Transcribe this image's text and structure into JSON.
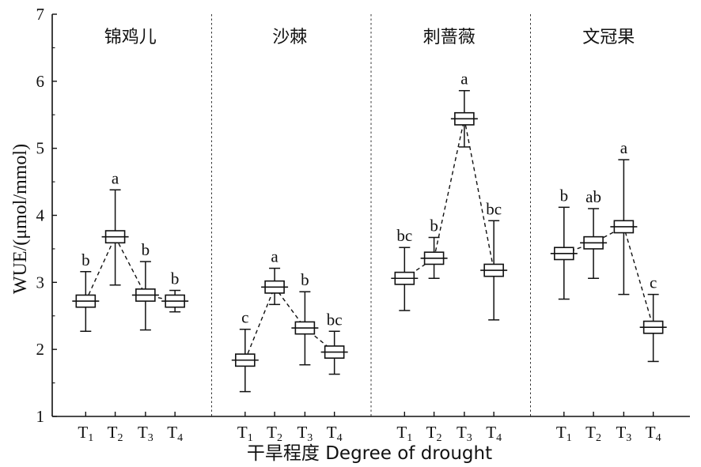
{
  "chart_data": {
    "type": "box",
    "ylabel": "WUE/(μmol/mmol)",
    "xlabel": "干旱程度 Degree of drought",
    "ylim": [
      1,
      7
    ],
    "yticks": [
      1,
      2,
      3,
      4,
      5,
      6,
      7
    ],
    "categories": [
      {
        "base": "T",
        "sub": "1"
      },
      {
        "base": "T",
        "sub": "2"
      },
      {
        "base": "T",
        "sub": "3"
      },
      {
        "base": "T",
        "sub": "4"
      }
    ],
    "panels": [
      {
        "title": "锦鸡儿",
        "boxes": [
          {
            "mean": 2.72,
            "q1": 2.63,
            "q3": 2.81,
            "min": 2.27,
            "max": 3.16,
            "sig": "b"
          },
          {
            "mean": 3.68,
            "q1": 3.59,
            "q3": 3.77,
            "min": 2.96,
            "max": 4.38,
            "sig": "a"
          },
          {
            "mean": 2.81,
            "q1": 2.72,
            "q3": 2.9,
            "min": 2.29,
            "max": 3.31,
            "sig": "b"
          },
          {
            "mean": 2.72,
            "q1": 2.63,
            "q3": 2.81,
            "min": 2.56,
            "max": 2.88,
            "sig": "b"
          }
        ]
      },
      {
        "title": "沙棘",
        "boxes": [
          {
            "mean": 1.84,
            "q1": 1.75,
            "q3": 1.93,
            "min": 1.37,
            "max": 2.3,
            "sig": "c"
          },
          {
            "mean": 2.93,
            "q1": 2.84,
            "q3": 3.02,
            "min": 2.67,
            "max": 3.21,
            "sig": "a"
          },
          {
            "mean": 2.32,
            "q1": 2.23,
            "q3": 2.41,
            "min": 1.77,
            "max": 2.86,
            "sig": "b"
          },
          {
            "mean": 1.96,
            "q1": 1.87,
            "q3": 2.05,
            "min": 1.63,
            "max": 2.27,
            "sig": "bc"
          }
        ]
      },
      {
        "title": "刺蔷薇",
        "boxes": [
          {
            "mean": 3.06,
            "q1": 2.97,
            "q3": 3.15,
            "min": 2.58,
            "max": 3.52,
            "sig": "bc"
          },
          {
            "mean": 3.36,
            "q1": 3.27,
            "q3": 3.45,
            "min": 3.06,
            "max": 3.67,
            "sig": "b"
          },
          {
            "mean": 5.44,
            "q1": 5.35,
            "q3": 5.53,
            "min": 5.02,
            "max": 5.86,
            "sig": "a"
          },
          {
            "mean": 3.18,
            "q1": 3.09,
            "q3": 3.27,
            "min": 2.44,
            "max": 3.92,
            "sig": "bc"
          }
        ]
      },
      {
        "title": "文冠果",
        "boxes": [
          {
            "mean": 3.43,
            "q1": 3.34,
            "q3": 3.52,
            "min": 2.75,
            "max": 4.12,
            "sig": "b"
          },
          {
            "mean": 3.59,
            "q1": 3.5,
            "q3": 3.68,
            "min": 3.06,
            "max": 4.1,
            "sig": "ab"
          },
          {
            "mean": 3.83,
            "q1": 3.74,
            "q3": 3.92,
            "min": 2.82,
            "max": 4.83,
            "sig": "a"
          },
          {
            "mean": 2.33,
            "q1": 2.24,
            "q3": 2.42,
            "min": 1.82,
            "max": 2.82,
            "sig": "c"
          }
        ]
      }
    ]
  }
}
